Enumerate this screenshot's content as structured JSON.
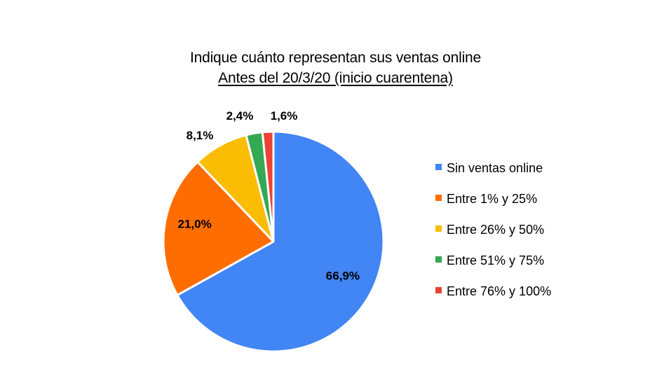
{
  "chart_data": {
    "type": "pie",
    "title": "Indique cuánto representan sus ventas online",
    "subtitle": "Antes del 20/3/20 (inicio cuarentena)",
    "categories": [
      "Sin ventas online",
      "Entre 1% y 25%",
      "Entre 26% y 50%",
      "Entre 51% y 75%",
      "Entre 76% y 100%"
    ],
    "values": [
      66.9,
      21.0,
      8.1,
      2.4,
      1.6
    ],
    "labels": [
      "66,9%",
      "21,0%",
      "8,1%",
      "2,4%",
      "1,6%"
    ],
    "colors": [
      "#4285F4",
      "#FF6D01",
      "#FBBC04",
      "#34A853",
      "#EA4335"
    ],
    "legend_position": "right"
  }
}
